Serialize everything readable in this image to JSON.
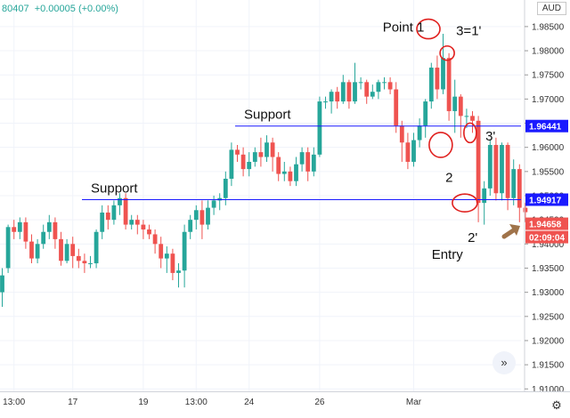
{
  "header": {
    "ohlc_text": "80407  +0.00005 (+0.00%)",
    "currency": "AUD"
  },
  "colors": {
    "up": "#26a69a",
    "down": "#ef5350",
    "support_line": "#1a1aff",
    "annotation_red": "#e0201e",
    "arrow_brown": "#a0734a"
  },
  "icons": {
    "settings": "gear-icon",
    "scroll": "double-chevron-right-icon"
  },
  "chart_data": {
    "type": "candlestick",
    "symbol_quote": "AUD",
    "ylim": [
      1.9095,
      1.9905
    ],
    "y_ticks": [
      1.91,
      1.915,
      1.92,
      1.925,
      1.93,
      1.935,
      1.94,
      1.945,
      1.95,
      1.955,
      1.96,
      1.965,
      1.97,
      1.975,
      1.98,
      1.985
    ],
    "y_tick_labels": [
      "1.91000",
      "1.91500",
      "1.92000",
      "1.92500",
      "1.93000",
      "1.93500",
      "1.94000",
      "1.94500",
      "1.95000",
      "1.95500",
      "1.96000",
      "1.96500",
      "1.97000",
      "1.97500",
      "1.98000",
      "1.98500"
    ],
    "x_tick_labels": [
      {
        "label": "13:00",
        "bar": 2
      },
      {
        "label": "17",
        "bar": 12
      },
      {
        "label": "19",
        "bar": 24
      },
      {
        "label": "13:00",
        "bar": 33
      },
      {
        "label": "24",
        "bar": 42
      },
      {
        "label": "26",
        "bar": 54
      },
      {
        "label": "Mar",
        "bar": 70
      }
    ],
    "candles": [
      [
        1.93,
        1.9335,
        1.927,
        1.935
      ],
      [
        1.935,
        1.9435,
        1.934,
        1.944
      ],
      [
        1.9435,
        1.9425,
        1.941,
        1.945
      ],
      [
        1.9425,
        1.9445,
        1.941,
        1.9455
      ],
      [
        1.9445,
        1.9405,
        1.939,
        1.9455
      ],
      [
        1.9405,
        1.937,
        1.936,
        1.942
      ],
      [
        1.937,
        1.94,
        1.936,
        1.941
      ],
      [
        1.94,
        1.9425,
        1.939,
        1.944
      ],
      [
        1.9425,
        1.9445,
        1.941,
        1.946
      ],
      [
        1.9445,
        1.941,
        1.939,
        1.9455
      ],
      [
        1.941,
        1.9365,
        1.9355,
        1.9425
      ],
      [
        1.9365,
        1.94,
        1.936,
        1.941
      ],
      [
        1.94,
        1.9375,
        1.935,
        1.9415
      ],
      [
        1.9375,
        1.9365,
        1.935,
        1.939
      ],
      [
        1.9365,
        1.936,
        1.934,
        1.938
      ],
      [
        1.936,
        1.936,
        1.935,
        1.9375
      ],
      [
        1.936,
        1.9425,
        1.935,
        1.943
      ],
      [
        1.9425,
        1.9465,
        1.941,
        1.948
      ],
      [
        1.9465,
        1.945,
        1.943,
        1.948
      ],
      [
        1.945,
        1.948,
        1.944,
        1.949
      ],
      [
        1.948,
        1.9495,
        1.946,
        1.9505
      ],
      [
        1.9495,
        1.944,
        1.943,
        1.9505
      ],
      [
        1.944,
        1.945,
        1.943,
        1.946
      ],
      [
        1.945,
        1.944,
        1.942,
        1.946
      ],
      [
        1.944,
        1.943,
        1.941,
        1.945
      ],
      [
        1.943,
        1.942,
        1.941,
        1.944
      ],
      [
        1.942,
        1.94,
        1.938,
        1.943
      ],
      [
        1.94,
        1.937,
        1.935,
        1.9415
      ],
      [
        1.937,
        1.938,
        1.934,
        1.9395
      ],
      [
        1.938,
        1.934,
        1.9325,
        1.939
      ],
      [
        1.934,
        1.9345,
        1.931,
        1.936
      ],
      [
        1.9345,
        1.9425,
        1.931,
        1.944
      ],
      [
        1.9425,
        1.945,
        1.941,
        1.946
      ],
      [
        1.945,
        1.947,
        1.943,
        1.948
      ],
      [
        1.947,
        1.944,
        1.941,
        1.949
      ],
      [
        1.944,
        1.9475,
        1.943,
        1.949
      ],
      [
        1.9475,
        1.949,
        1.946,
        1.95
      ],
      [
        1.949,
        1.9495,
        1.947,
        1.9505
      ],
      [
        1.9495,
        1.9535,
        1.948,
        1.955
      ],
      [
        1.9535,
        1.9595,
        1.952,
        1.961
      ],
      [
        1.9595,
        1.9585,
        1.957,
        1.9605
      ],
      [
        1.9585,
        1.9555,
        1.954,
        1.96
      ],
      [
        1.9555,
        1.957,
        1.954,
        1.959
      ],
      [
        1.957,
        1.959,
        1.956,
        1.96
      ],
      [
        1.959,
        1.958,
        1.956,
        1.962
      ],
      [
        1.958,
        1.961,
        1.957,
        1.9625
      ],
      [
        1.961,
        1.958,
        1.955,
        1.962
      ],
      [
        1.958,
        1.9545,
        1.953,
        1.959
      ],
      [
        1.9545,
        1.955,
        1.953,
        1.957
      ],
      [
        1.955,
        1.953,
        1.952,
        1.956
      ],
      [
        1.953,
        1.9565,
        1.952,
        1.958
      ],
      [
        1.9565,
        1.959,
        1.955,
        1.96
      ],
      [
        1.959,
        1.955,
        1.953,
        1.96
      ],
      [
        1.955,
        1.9585,
        1.954,
        1.96
      ],
      [
        1.9585,
        1.9695,
        1.958,
        1.9705
      ],
      [
        1.9695,
        1.9695,
        1.968,
        1.9705
      ],
      [
        1.9695,
        1.9715,
        1.967,
        1.972
      ],
      [
        1.9715,
        1.9695,
        1.968,
        1.9725
      ],
      [
        1.9695,
        1.9735,
        1.969,
        1.975
      ],
      [
        1.9735,
        1.9695,
        1.968,
        1.974
      ],
      [
        1.9695,
        1.9735,
        1.969,
        1.9775
      ],
      [
        1.9735,
        1.9735,
        1.972,
        1.9745
      ],
      [
        1.9735,
        1.9705,
        1.969,
        1.974
      ],
      [
        1.9705,
        1.9715,
        1.97,
        1.973
      ],
      [
        1.9715,
        1.9735,
        1.97,
        1.974
      ],
      [
        1.9735,
        1.9735,
        1.972,
        1.9745
      ],
      [
        1.9735,
        1.972,
        1.971,
        1.9745
      ],
      [
        1.972,
        1.9645,
        1.963,
        1.9735
      ],
      [
        1.9645,
        1.961,
        1.957,
        1.9655
      ],
      [
        1.961,
        1.957,
        1.9555,
        1.963
      ],
      [
        1.957,
        1.9615,
        1.956,
        1.963
      ],
      [
        1.9615,
        1.9645,
        1.96,
        1.966
      ],
      [
        1.9645,
        1.9695,
        1.962,
        1.97
      ],
      [
        1.9695,
        1.9765,
        1.968,
        1.9775
      ],
      [
        1.9765,
        1.972,
        1.97,
        1.979
      ],
      [
        1.972,
        1.9785,
        1.971,
        1.9835
      ],
      [
        1.9785,
        1.9675,
        1.9655,
        1.9795
      ],
      [
        1.9675,
        1.9705,
        1.963,
        1.974
      ],
      [
        1.9705,
        1.9665,
        1.962,
        1.971
      ],
      [
        1.9665,
        1.9665,
        1.964,
        1.968
      ],
      [
        1.9665,
        1.9655,
        1.963,
        1.9675
      ],
      [
        1.9655,
        1.9485,
        1.9445,
        1.9665
      ],
      [
        1.9485,
        1.9515,
        1.944,
        1.953
      ],
      [
        1.9515,
        1.9605,
        1.95,
        1.9615
      ],
      [
        1.9605,
        1.9505,
        1.949,
        1.962
      ],
      [
        1.9505,
        1.9605,
        1.949,
        1.961
      ],
      [
        1.9605,
        1.9495,
        1.947,
        1.961
      ],
      [
        1.9495,
        1.9555,
        1.948,
        1.9575
      ],
      [
        1.9555,
        1.9475,
        1.9445,
        1.9565
      ],
      [
        1.9475,
        1.94658,
        1.9445,
        1.9485
      ]
    ],
    "support_lines": [
      {
        "label": "Support",
        "value": 1.94917
      },
      {
        "label": "Support",
        "value": 1.96441
      }
    ],
    "price_labels": [
      {
        "text": "1.96441",
        "value": 1.96441,
        "kind": "support"
      },
      {
        "text": "1.94917",
        "value": 1.94917,
        "kind": "support"
      },
      {
        "text": "1.94658",
        "value": 1.94658,
        "kind": "last"
      },
      {
        "text": "02:09:04",
        "value": 1.94658,
        "kind": "countdown"
      }
    ],
    "annotations": [
      {
        "text": "Point 1",
        "bar": 72,
        "price": 1.9845
      },
      {
        "text": "3=1'",
        "bar": 76,
        "price": 1.9845
      },
      {
        "text": "2",
        "bar": 76,
        "price": 1.9565
      },
      {
        "text": "3'",
        "bar": 81,
        "price": 1.9625
      },
      {
        "text": "2'",
        "bar": 81,
        "price": 1.9445
      },
      {
        "text": "Entry",
        "bar": 77,
        "price": 1.9415
      }
    ],
    "circles": [
      {
        "bar": 72.5,
        "price": 1.9845
      },
      {
        "bar": 75.7,
        "price": 1.9795
      },
      {
        "bar": 74.6,
        "price": 1.9605
      },
      {
        "bar": 79.6,
        "price": 1.963
      },
      {
        "bar": 78.7,
        "price": 1.9485
      }
    ]
  }
}
